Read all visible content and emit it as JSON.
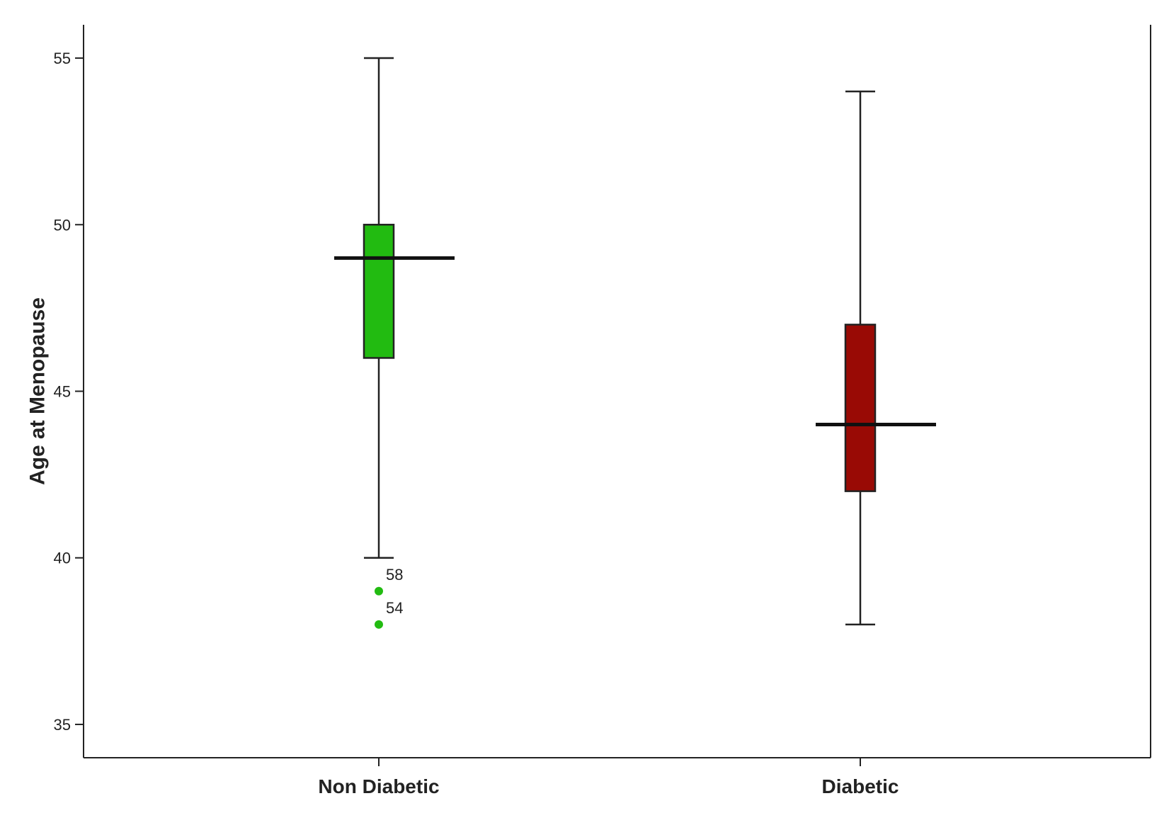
{
  "chart_data": {
    "type": "box",
    "ylabel": "Age at Menopause",
    "xlabel": "",
    "ylim": [
      34,
      56
    ],
    "yticks": [
      35,
      40,
      45,
      50,
      55
    ],
    "ytick_labels": [
      "35",
      "40",
      "45",
      "50",
      "55"
    ],
    "categories": [
      "Non Diabetic",
      "Diabetic"
    ],
    "series": [
      {
        "category": "Non Diabetic",
        "whisker_low": 40,
        "q1": 46,
        "median": 49,
        "q3": 50,
        "whisker_high": 55,
        "color": "#22bb11",
        "outliers": [
          {
            "value": 39,
            "label": "58"
          },
          {
            "value": 38,
            "label": "54"
          }
        ]
      },
      {
        "category": "Diabetic",
        "whisker_low": 38,
        "q1": 42,
        "median": 44,
        "q3": 47,
        "whisker_high": 54,
        "color": "#990a05",
        "outliers": []
      }
    ],
    "grid": false,
    "frame": "left-right-bottom"
  }
}
